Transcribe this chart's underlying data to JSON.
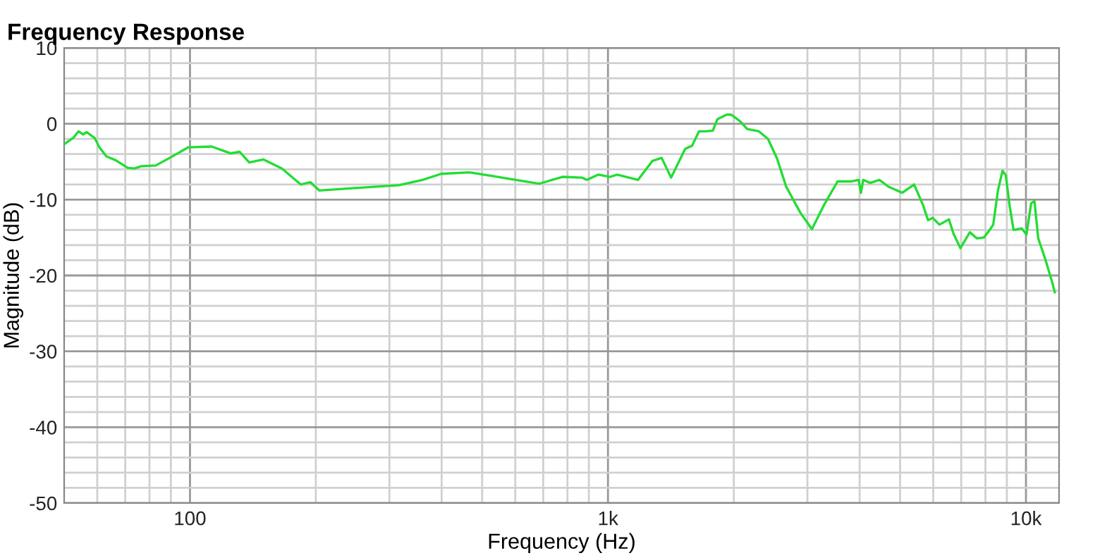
{
  "chart_data": {
    "type": "line",
    "title": "Frequency Response",
    "xlabel": "Frequency (Hz)",
    "ylabel": "Magnitude (dB)",
    "log": "x",
    "grid": true,
    "marker": "none",
    "line_style": "solid",
    "xlim": [
      50,
      12000
    ],
    "ylim": [
      -50,
      10
    ],
    "xticks": [
      {
        "value": 60,
        "label": null
      },
      {
        "value": 70,
        "label": null
      },
      {
        "value": 80,
        "label": null
      },
      {
        "value": 90,
        "label": null
      },
      {
        "value": 100,
        "label": "100"
      },
      {
        "value": 200,
        "label": null
      },
      {
        "value": 300,
        "label": null
      },
      {
        "value": 400,
        "label": null
      },
      {
        "value": 500,
        "label": null
      },
      {
        "value": 600,
        "label": null
      },
      {
        "value": 700,
        "label": null
      },
      {
        "value": 800,
        "label": null
      },
      {
        "value": 900,
        "label": null
      },
      {
        "value": 1000,
        "label": "1k"
      },
      {
        "value": 2000,
        "label": null
      },
      {
        "value": 3000,
        "label": null
      },
      {
        "value": 4000,
        "label": null
      },
      {
        "value": 5000,
        "label": null
      },
      {
        "value": 6000,
        "label": null
      },
      {
        "value": 7000,
        "label": null
      },
      {
        "value": 8000,
        "label": null
      },
      {
        "value": 9000,
        "label": null
      },
      {
        "value": 10000,
        "label": "10k"
      }
    ],
    "yticks": [
      -50,
      {
        "value": -48,
        "label": null
      },
      {
        "value": -46,
        "label": null
      },
      {
        "value": -44,
        "label": null
      },
      {
        "value": -42,
        "label": null
      },
      -40,
      {
        "value": -38,
        "label": null
      },
      {
        "value": -36,
        "label": null
      },
      {
        "value": -34,
        "label": null
      },
      {
        "value": -32,
        "label": null
      },
      -30,
      {
        "value": -28,
        "label": null
      },
      {
        "value": -26,
        "label": null
      },
      {
        "value": -24,
        "label": null
      },
      {
        "value": -22,
        "label": null
      },
      -20,
      {
        "value": -18,
        "label": null
      },
      {
        "value": -16,
        "label": null
      },
      {
        "value": -14,
        "label": null
      },
      {
        "value": -12,
        "label": null
      },
      -10,
      {
        "value": -8,
        "label": null
      },
      {
        "value": -6,
        "label": null
      },
      {
        "value": -4,
        "label": null
      },
      {
        "value": -2,
        "label": null
      },
      0,
      {
        "value": 2,
        "label": null
      },
      {
        "value": 4,
        "label": null
      },
      {
        "value": 6,
        "label": null
      },
      {
        "value": 8,
        "label": null
      },
      10
    ],
    "series": [
      {
        "color": "#22dd33",
        "x": [
          50,
          52.7,
          54.1,
          55.5,
          56.6,
          59.2,
          60.7,
          63.1,
          66.4,
          70.9,
          73.6,
          76.5,
          82.8,
          89.4,
          99.1,
          112.7,
          125,
          131.5,
          138.6,
          149.8,
          166,
          184,
          194,
          204,
          245,
          316,
          360,
          399,
          466,
          530,
          602,
          685,
          778,
          866,
          890,
          949,
          1012,
          1052,
          1180,
          1277,
          1344,
          1416,
          1530,
          1589,
          1651,
          1715,
          1782,
          1827,
          1922,
          1972,
          2073,
          2153,
          2297,
          2415,
          2539,
          2669,
          2884,
          3075,
          3281,
          3542,
          3829,
          3978,
          4029,
          4080,
          4240,
          4460,
          4690,
          5060,
          5400,
          5680,
          5830,
          5980,
          6210,
          6540,
          6710,
          6970,
          7340,
          7630,
          7930,
          8140,
          8350,
          8570,
          8790,
          8950,
          9140,
          9340,
          9770,
          10030,
          10290,
          10480,
          10700,
          11130,
          11570,
          11720
        ],
        "values": [
          -2.7,
          -1.8,
          -1.0,
          -1.4,
          -1.1,
          -1.9,
          -3.1,
          -4.3,
          -4.8,
          -5.8,
          -5.9,
          -5.6,
          -5.5,
          -4.5,
          -3.1,
          -3.0,
          -3.9,
          -3.7,
          -5.1,
          -4.7,
          -5.9,
          -8.0,
          -7.7,
          -8.8,
          -8.5,
          -8.1,
          -7.4,
          -6.6,
          -6.4,
          -6.9,
          -7.4,
          -7.9,
          -7.0,
          -7.1,
          -7.4,
          -6.7,
          -7.0,
          -6.7,
          -7.4,
          -4.9,
          -4.5,
          -7.1,
          -3.3,
          -2.9,
          -1.0,
          -1.0,
          -0.9,
          0.6,
          1.2,
          1.2,
          0.3,
          -0.7,
          -1.0,
          -2.0,
          -4.6,
          -8.3,
          -11.7,
          -13.9,
          -10.8,
          -7.6,
          -7.6,
          -7.4,
          -9.1,
          -7.4,
          -7.8,
          -7.4,
          -8.3,
          -9.1,
          -8.0,
          -10.8,
          -12.7,
          -12.4,
          -13.3,
          -12.6,
          -14.5,
          -16.4,
          -14.3,
          -15.1,
          -15.0,
          -14.2,
          -13.3,
          -8.8,
          -6.2,
          -6.8,
          -10.8,
          -14.0,
          -13.8,
          -14.6,
          -10.5,
          -10.2,
          -15.1,
          -17.9,
          -21.0,
          -22.2
        ]
      }
    ]
  }
}
